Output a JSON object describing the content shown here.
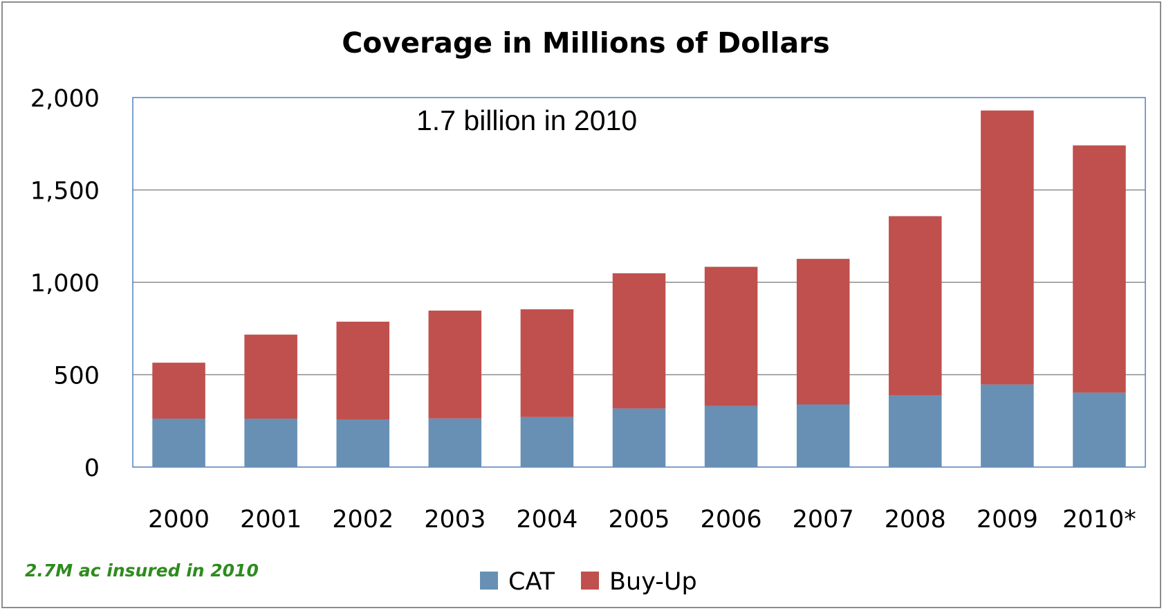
{
  "chart_data": {
    "type": "bar",
    "stacked": true,
    "title": "Coverage in Millions of Dollars",
    "annotation": "1.7 billion in 2010",
    "note": "2.7M ac insured in 2010",
    "categories": [
      "2000",
      "2001",
      "2002",
      "2003",
      "2004",
      "2005",
      "2006",
      "2007",
      "2008",
      "2009",
      "2010*"
    ],
    "series": [
      {
        "name": "CAT",
        "color": "#6890b4",
        "values": [
          262,
          262,
          256,
          263,
          271,
          317,
          331,
          339,
          388,
          447,
          403
        ]
      },
      {
        "name": "Buy-Up",
        "color": "#c0504d",
        "values": [
          303,
          455,
          531,
          584,
          583,
          732,
          753,
          788,
          970,
          1483,
          1338
        ]
      }
    ],
    "ylim": [
      0,
      2000
    ],
    "yticks": [
      0,
      500,
      1000,
      1500,
      2000
    ],
    "ytick_labels": [
      "0",
      "500",
      "1,000",
      "1,500",
      "2,000"
    ],
    "xlabel": "",
    "ylabel": "",
    "grid": true,
    "legend": "bottom"
  }
}
